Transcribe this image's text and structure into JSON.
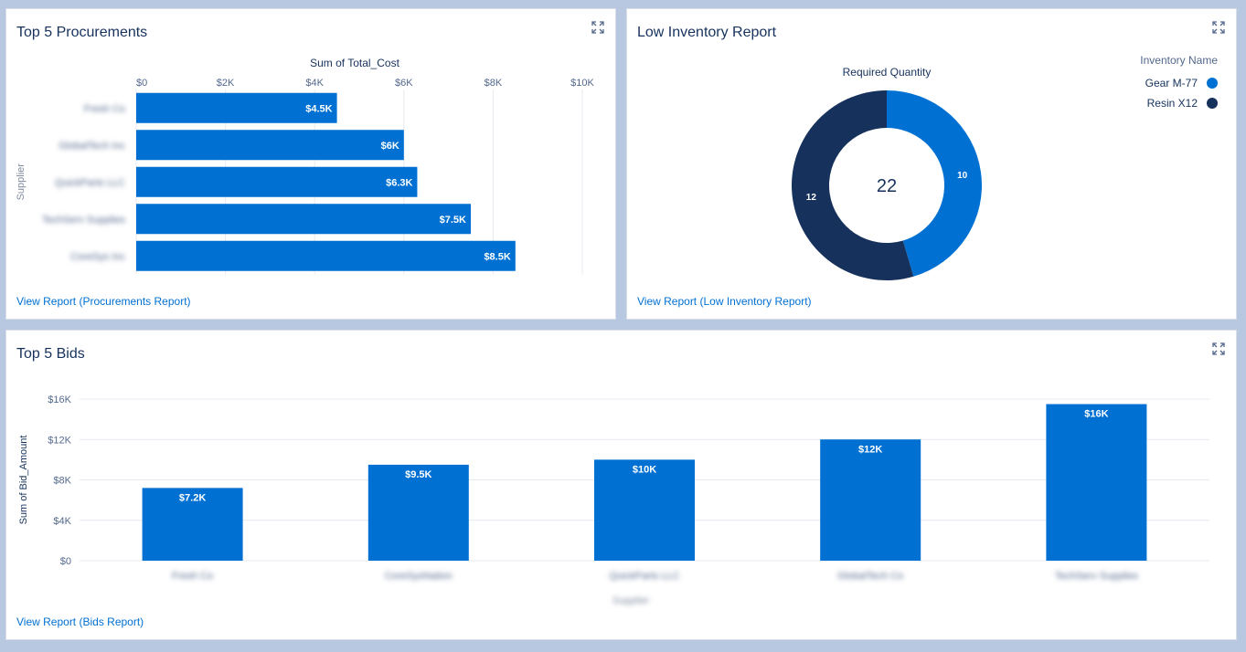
{
  "procurements": {
    "title": "Top 5 Procurements",
    "link": "View Report (Procurements Report)",
    "expand_icon": "expand-icon",
    "chart_data": {
      "type": "bar",
      "orientation": "horizontal",
      "title": "Sum of Total_Cost",
      "ylabel": "Supplier",
      "xlim": [
        0,
        10000
      ],
      "xticks": [
        "$0",
        "$2K",
        "$4K",
        "$6K",
        "$8K",
        "$10K"
      ],
      "categories": [
        "Fresh Co",
        "GlobalTech Inc",
        "QuickParts LLC",
        "TechServ Supplies",
        "CoreSys Inc"
      ],
      "values": [
        4500,
        6000,
        6300,
        7500,
        8500
      ],
      "labels": [
        "$4.5K",
        "$6K",
        "$6.3K",
        "$7.5K",
        "$8.5K"
      ],
      "color": "#0070d2",
      "grid": true
    }
  },
  "inventory": {
    "title": "Low Inventory Report",
    "link": "View Report (Low Inventory Report)",
    "expand_icon": "expand-icon",
    "chart_data": {
      "type": "pie",
      "donut": true,
      "title": "Required Quantity",
      "total": "22",
      "legend_title": "Inventory Name",
      "legend_position": "top-right",
      "slices": [
        {
          "name": "Gear M-77",
          "value": 10,
          "label": "10",
          "color": "#0070d2"
        },
        {
          "name": "Resin X12",
          "value": 12,
          "label": "12",
          "color": "#16325c"
        }
      ]
    }
  },
  "bids": {
    "title": "Top 5 Bids",
    "link": "View Report (Bids Report)",
    "expand_icon": "expand-icon",
    "chart_data": {
      "type": "bar",
      "orientation": "vertical",
      "ylabel": "Sum of Bid_Amount",
      "xlabel": "Supplier",
      "ylim": [
        0,
        16000
      ],
      "yticks": [
        "$0",
        "$4K",
        "$8K",
        "$12K",
        "$16K"
      ],
      "categories": [
        "Fresh Co",
        "CoreSysNation",
        "QuickParts LLC",
        "GlobalTech Co",
        "TechServ Supplies"
      ],
      "values": [
        7200,
        9500,
        10000,
        12000,
        15500
      ],
      "labels": [
        "$7.2K",
        "$9.5K",
        "$10K",
        "$12K",
        "$16K"
      ],
      "color": "#0070d2",
      "grid": true
    }
  }
}
